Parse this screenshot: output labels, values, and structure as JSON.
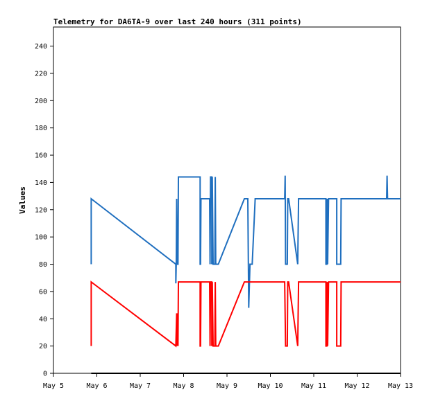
{
  "chart_data": {
    "type": "line",
    "title": "Telemetry for DA6TA-9 over last 240 hours (311 points)",
    "xlabel": "",
    "ylabel": "Values",
    "x_ticks": [
      "May 5",
      "May 6",
      "May 7",
      "May 8",
      "May 9",
      "May 10",
      "May 11",
      "May 12",
      "May 13"
    ],
    "x_range": [
      0,
      8
    ],
    "x_unit": "days after May 5 00:00",
    "ylim": [
      0,
      254
    ],
    "y_ticks": [
      0,
      20,
      40,
      60,
      80,
      100,
      120,
      140,
      160,
      180,
      200,
      220,
      240
    ],
    "grid": false,
    "legend": "none",
    "series": [
      {
        "color": "#1f6fbf",
        "points": [
          [
            0.87,
            80
          ],
          [
            0.87,
            128
          ],
          [
            2.82,
            80
          ],
          [
            2.82,
            66
          ],
          [
            2.83,
            80
          ],
          [
            2.84,
            128
          ],
          [
            2.85,
            80
          ],
          [
            2.87,
            80
          ],
          [
            2.88,
            144
          ],
          [
            3.38,
            144
          ],
          [
            3.38,
            80
          ],
          [
            3.39,
            80
          ],
          [
            3.4,
            128
          ],
          [
            3.6,
            128
          ],
          [
            3.61,
            80
          ],
          [
            3.62,
            144
          ],
          [
            3.65,
            144
          ],
          [
            3.65,
            80
          ],
          [
            3.66,
            144
          ],
          [
            3.68,
            80
          ],
          [
            3.72,
            80
          ],
          [
            3.73,
            144
          ],
          [
            3.74,
            80
          ],
          [
            3.8,
            80
          ],
          [
            4.4,
            128
          ],
          [
            4.48,
            128
          ],
          [
            4.5,
            48
          ],
          [
            4.53,
            80
          ],
          [
            4.58,
            80
          ],
          [
            4.65,
            128
          ],
          [
            5.33,
            128
          ],
          [
            5.34,
            145
          ],
          [
            5.35,
            80
          ],
          [
            5.39,
            80
          ],
          [
            5.4,
            128
          ],
          [
            5.42,
            128
          ],
          [
            5.63,
            80
          ],
          [
            5.65,
            128
          ],
          [
            6.28,
            128
          ],
          [
            6.28,
            80
          ],
          [
            6.3,
            80
          ],
          [
            6.31,
            128
          ],
          [
            6.32,
            80
          ],
          [
            6.34,
            128
          ],
          [
            6.53,
            128
          ],
          [
            6.53,
            80
          ],
          [
            6.62,
            80
          ],
          [
            6.63,
            128
          ],
          [
            7.68,
            128
          ],
          [
            7.69,
            145
          ],
          [
            7.7,
            128
          ],
          [
            8.0,
            128
          ]
        ]
      },
      {
        "color": "#ff0000",
        "points": [
          [
            0.87,
            20
          ],
          [
            0.87,
            67
          ],
          [
            2.82,
            20
          ],
          [
            2.84,
            44
          ],
          [
            2.85,
            20
          ],
          [
            2.86,
            44
          ],
          [
            2.87,
            20
          ],
          [
            2.88,
            67
          ],
          [
            3.38,
            67
          ],
          [
            3.38,
            20
          ],
          [
            3.39,
            20
          ],
          [
            3.4,
            67
          ],
          [
            3.6,
            67
          ],
          [
            3.61,
            20
          ],
          [
            3.62,
            67
          ],
          [
            3.65,
            67
          ],
          [
            3.65,
            20
          ],
          [
            3.66,
            67
          ],
          [
            3.68,
            20
          ],
          [
            3.72,
            20
          ],
          [
            3.73,
            67
          ],
          [
            3.74,
            20
          ],
          [
            3.8,
            20
          ],
          [
            4.4,
            67
          ],
          [
            5.33,
            67
          ],
          [
            5.35,
            20
          ],
          [
            5.39,
            20
          ],
          [
            5.4,
            67
          ],
          [
            5.42,
            67
          ],
          [
            5.63,
            20
          ],
          [
            5.65,
            67
          ],
          [
            6.28,
            67
          ],
          [
            6.28,
            20
          ],
          [
            6.3,
            20
          ],
          [
            6.31,
            67
          ],
          [
            6.32,
            20
          ],
          [
            6.34,
            67
          ],
          [
            6.53,
            67
          ],
          [
            6.53,
            20
          ],
          [
            6.62,
            20
          ],
          [
            6.63,
            67
          ],
          [
            8.0,
            67
          ]
        ]
      },
      {
        "color": "#000000",
        "points": [
          [
            0.87,
            0
          ],
          [
            8.0,
            0
          ]
        ]
      }
    ]
  }
}
